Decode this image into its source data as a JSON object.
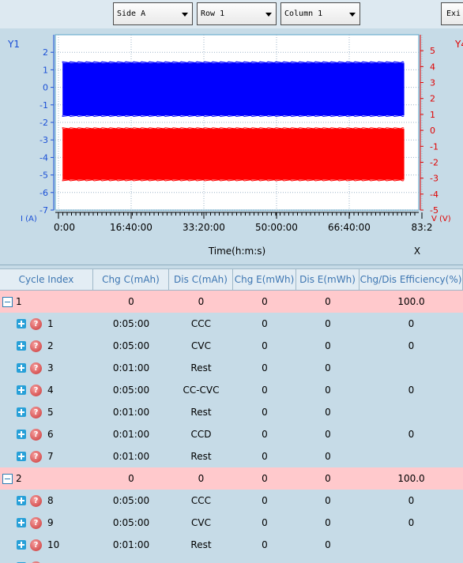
{
  "toolbar": {
    "side": "Side A",
    "row": "Row 1",
    "column": "Column 1",
    "exit": "Exi"
  },
  "chart": {
    "left_axis_name": "Y1",
    "right_axis_name": "Y4",
    "left_unit": "I (A)",
    "right_unit": "V (V)",
    "xlabel": "Time(h:m:s)",
    "x_axis_name": "X",
    "left_ticks": [
      "2",
      "1",
      "0",
      "-1",
      "-2",
      "-3",
      "-4",
      "-5",
      "-6",
      "-7"
    ],
    "right_ticks": [
      "5",
      "4",
      "3",
      "2",
      "1",
      "0",
      "-1",
      "-2",
      "-3",
      "-4",
      "-5"
    ],
    "x_ticks": [
      "0:00",
      "16:40:00",
      "33:20:00",
      "50:00:00",
      "66:40:00",
      "83:2"
    ],
    "colors": {
      "current": "#0000ff",
      "voltage": "#ff0000",
      "left_axis": "#1a4fd6",
      "right_axis": "#e00000"
    }
  },
  "chart_data": {
    "type": "area",
    "xlabel": "Time(h:m:s)",
    "ylabel": "I (A)",
    "y2label": "V (V)",
    "ylim": [
      -7,
      3
    ],
    "y2lim": [
      -5,
      6
    ],
    "series": [
      {
        "name": "I (A)",
        "axis": "left",
        "x_start": "1:40:00",
        "x_end": "80:00:00",
        "y_max": 1.4,
        "y_min": -1.6
      },
      {
        "name": "V (V)",
        "axis": "right",
        "x_start": "1:40:00",
        "x_end": "80:00:00",
        "y_max": 0.1,
        "y_min": -3.1
      }
    ]
  },
  "table": {
    "headers": [
      "Cycle Index",
      "Chg C(mAh)",
      "Dis C(mAh)",
      "Chg E(mWh)",
      "Dis E(mWh)",
      "Chg/Dis Efficiency(%)"
    ],
    "rows": [
      {
        "type": "cycle",
        "index": "1",
        "c1": "0",
        "c2": "0",
        "c3": "0",
        "c4": "0",
        "c5": "100.0"
      },
      {
        "type": "step",
        "index": "1",
        "c1": "0:05:00",
        "c2": "CCC",
        "c3": "0",
        "c4": "0",
        "c5": "0"
      },
      {
        "type": "step",
        "index": "2",
        "c1": "0:05:00",
        "c2": "CVC",
        "c3": "0",
        "c4": "0",
        "c5": "0"
      },
      {
        "type": "step",
        "index": "3",
        "c1": "0:01:00",
        "c2": "Rest",
        "c3": "0",
        "c4": "0",
        "c5": ""
      },
      {
        "type": "step",
        "index": "4",
        "c1": "0:05:00",
        "c2": "CC-CVC",
        "c3": "0",
        "c4": "0",
        "c5": "0"
      },
      {
        "type": "step",
        "index": "5",
        "c1": "0:01:00",
        "c2": "Rest",
        "c3": "0",
        "c4": "0",
        "c5": ""
      },
      {
        "type": "step",
        "index": "6",
        "c1": "0:01:00",
        "c2": "CCD",
        "c3": "0",
        "c4": "0",
        "c5": "0"
      },
      {
        "type": "step",
        "index": "7",
        "c1": "0:01:00",
        "c2": "Rest",
        "c3": "0",
        "c4": "0",
        "c5": ""
      },
      {
        "type": "cycle",
        "index": "2",
        "c1": "0",
        "c2": "0",
        "c3": "0",
        "c4": "0",
        "c5": "100.0"
      },
      {
        "type": "step",
        "index": "8",
        "c1": "0:05:00",
        "c2": "CCC",
        "c3": "0",
        "c4": "0",
        "c5": "0"
      },
      {
        "type": "step",
        "index": "9",
        "c1": "0:05:00",
        "c2": "CVC",
        "c3": "0",
        "c4": "0",
        "c5": "0"
      },
      {
        "type": "step",
        "index": "10",
        "c1": "0:01:00",
        "c2": "Rest",
        "c3": "0",
        "c4": "0",
        "c5": ""
      },
      {
        "type": "step",
        "index": "11",
        "c1": "0:05:00",
        "c2": "CC-CVC",
        "c3": "0",
        "c4": "0",
        "c5": "0"
      }
    ]
  }
}
